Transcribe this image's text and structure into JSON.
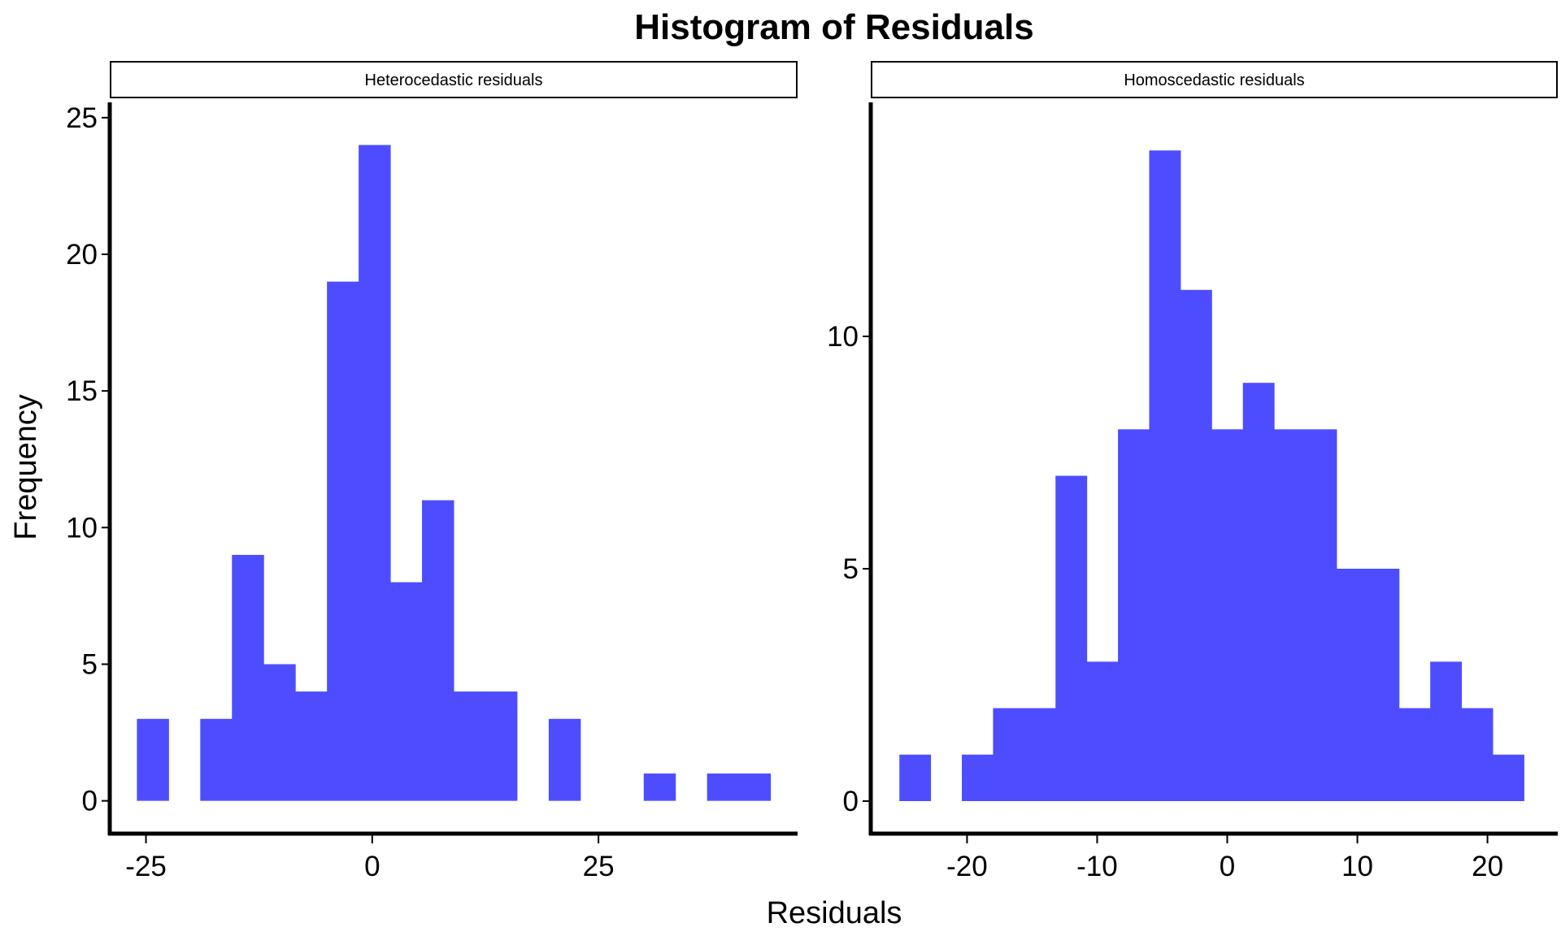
{
  "chart_data": {
    "type": "bar",
    "title": "Histogram of Residuals",
    "xlabel": "Residuals",
    "ylabel": "Frequency",
    "bar_color": "#4d4dff",
    "grid": false,
    "panels": [
      {
        "strip_label": "Heterocedastic residuals",
        "bin_width": 3.5,
        "bin_starts": [
          -26,
          -22.5,
          -19,
          -15.5,
          -12,
          -8.5,
          -5,
          -1.5,
          2,
          5.5,
          9,
          12.5,
          16,
          19.5,
          23,
          26.5,
          30,
          33.5,
          37,
          40.5
        ],
        "values": [
          3,
          0,
          3,
          9,
          5,
          4,
          19,
          24,
          8,
          11,
          4,
          4,
          0,
          3,
          0,
          0,
          1,
          0,
          1,
          1
        ],
        "xlim": [
          -29,
          47
        ],
        "ylim": [
          -1.2,
          25.5
        ],
        "x_ticks": [
          -25,
          0,
          25
        ],
        "x_tick_labels": [
          "-25",
          "0",
          "25"
        ],
        "y_ticks": [
          0,
          5,
          10,
          15,
          20,
          25
        ],
        "y_tick_labels": [
          "0",
          "5",
          "10",
          "15",
          "20",
          "25"
        ]
      },
      {
        "strip_label": "Homoscedastic residuals",
        "bin_width": 2.4,
        "bin_starts": [
          -25.2,
          -22.8,
          -20.4,
          -18,
          -15.6,
          -13.2,
          -10.8,
          -8.4,
          -6,
          -3.6,
          -1.2,
          1.2,
          3.6,
          6,
          8.4,
          10.8,
          13.2,
          15.6,
          18,
          20.4
        ],
        "values": [
          1,
          0,
          1,
          2,
          2,
          7,
          3,
          8,
          14,
          11,
          8,
          9,
          8,
          8,
          5,
          5,
          2,
          3,
          2,
          1
        ],
        "xlim": [
          -27.4,
          25.4
        ],
        "ylim": [
          -0.7,
          15
        ],
        "x_ticks": [
          -20,
          -10,
          0,
          10,
          20
        ],
        "x_tick_labels": [
          "-20",
          "-10",
          "0",
          "10",
          "20"
        ],
        "y_ticks": [
          0,
          5,
          10
        ],
        "y_tick_labels": [
          "0",
          "5",
          "10"
        ]
      }
    ]
  }
}
